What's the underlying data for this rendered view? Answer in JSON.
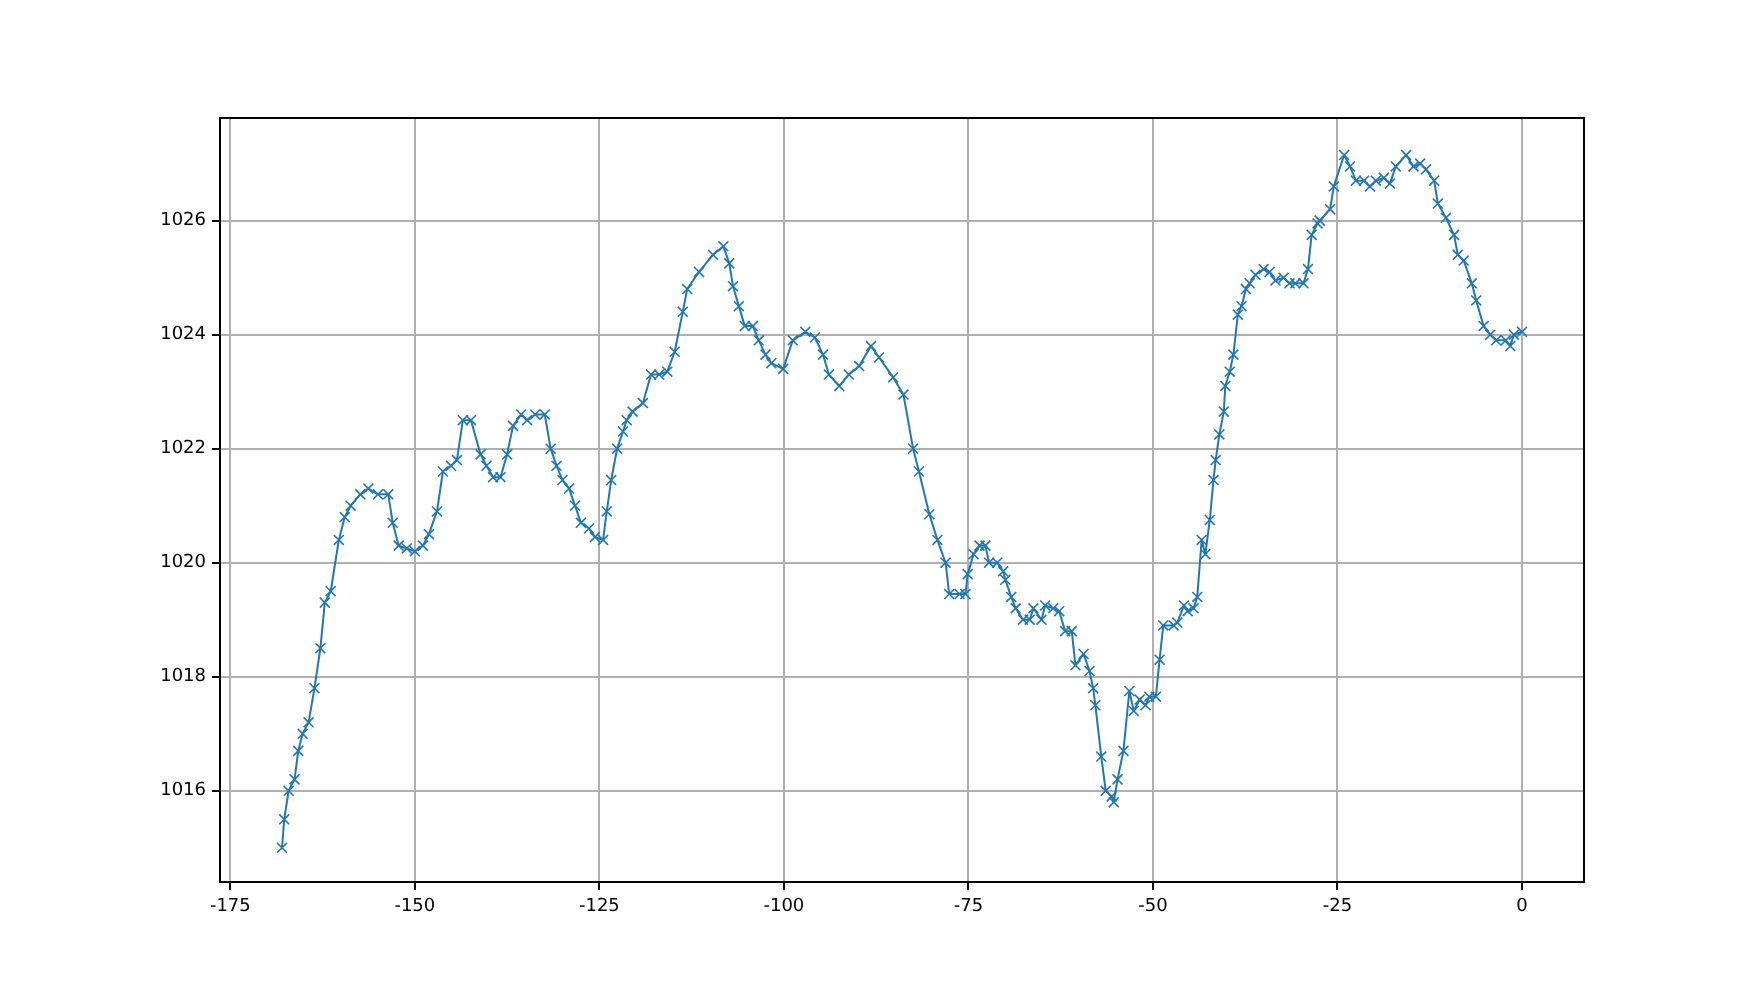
{
  "chart_data": {
    "type": "line",
    "marker": "cross",
    "line_style": "solid",
    "grid": true,
    "xlim": [
      -176.4,
      8.4
    ],
    "xticks": [
      -175,
      -150,
      -125,
      -100,
      -75,
      -50,
      -25,
      0
    ],
    "ylim": [
      1014.4,
      1027.8
    ],
    "yticks": [
      1016,
      1018,
      1020,
      1022,
      1024,
      1026
    ],
    "x": [
      -168,
      -167.7,
      -167.1,
      -166.3,
      -165.8,
      -165.2,
      -164.4,
      -163.6,
      -162.8,
      -162.2,
      -161.4,
      -160.3,
      -159.5,
      -158.7,
      -157.4,
      -156.3,
      -155,
      -153.6,
      -153,
      -152.2,
      -151.1,
      -150,
      -148.9,
      -148.1,
      -147,
      -146.2,
      -145.1,
      -144.3,
      -143.5,
      -142.4,
      -141.1,
      -140.3,
      -139.4,
      -138.4,
      -137.5,
      -136.7,
      -135.6,
      -134.8,
      -133.7,
      -132.4,
      -131.6,
      -130.8,
      -130,
      -129.1,
      -128.3,
      -127.5,
      -126.4,
      -125.6,
      -124.5,
      -124,
      -123.4,
      -122.6,
      -121.8,
      -121.3,
      -120.5,
      -119.1,
      -118,
      -116.9,
      -115.8,
      -114.8,
      -113.7,
      -113.1,
      -111.5,
      -109.6,
      -108.2,
      -107.4,
      -106.9,
      -106.1,
      -105.3,
      -104.2,
      -103.4,
      -102.5,
      -101.7,
      -100.1,
      -98.8,
      -97.1,
      -95.8,
      -94.7,
      -93.9,
      -92.5,
      -91.2,
      -89.8,
      -88.2,
      -87.1,
      -85.2,
      -83.8,
      -82.5,
      -81.7,
      -80.3,
      -79.2,
      -78.1,
      -77.6,
      -76.2,
      -75.4,
      -75.1,
      -74.3,
      -73.5,
      -72.7,
      -72.2,
      -71.1,
      -70.3,
      -70,
      -69.2,
      -68.6,
      -67.6,
      -66.7,
      -66.2,
      -65.1,
      -64.6,
      -63.5,
      -62.7,
      -61.9,
      -61,
      -60.5,
      -59.4,
      -58.6,
      -58.1,
      -57.8,
      -57,
      -56.4,
      -55.6,
      -55.3,
      -54.8,
      -54,
      -53.2,
      -52.6,
      -51.8,
      -51,
      -50.5,
      -49.6,
      -49.1,
      -48.6,
      -47.2,
      -46.7,
      -45.8,
      -45.3,
      -44.5,
      -44,
      -43.4,
      -42.9,
      -42.3,
      -41.8,
      -41.5,
      -41,
      -40.4,
      -40.2,
      -39.6,
      -39.1,
      -38.5,
      -38,
      -37.4,
      -36.9,
      -36.1,
      -35,
      -34.2,
      -33.4,
      -32.3,
      -31.5,
      -30.7,
      -29.6,
      -29,
      -28.5,
      -27.7,
      -27.4,
      -26,
      -25.5,
      -24.1,
      -23.3,
      -22.5,
      -21.4,
      -20.6,
      -19.8,
      -18.7,
      -17.9,
      -17.1,
      -15.7,
      -14.7,
      -13.8,
      -13,
      -11.9,
      -11.4,
      -10.3,
      -9.2,
      -8.7,
      -7.9,
      -6.8,
      -6.2,
      -5.2,
      -4.3,
      -3.5,
      -2.2,
      -1.6,
      -1.1,
      0
    ],
    "series": [
      {
        "color": "#1f77b4",
        "values": [
          1015.0,
          1015.5,
          1016.0,
          1016.2,
          1016.7,
          1017.0,
          1017.2,
          1017.8,
          1018.5,
          1019.3,
          1019.5,
          1020.4,
          1020.8,
          1021.0,
          1021.2,
          1021.3,
          1021.2,
          1021.2,
          1020.7,
          1020.3,
          1020.25,
          1020.2,
          1020.3,
          1020.5,
          1020.9,
          1021.6,
          1021.7,
          1021.8,
          1022.5,
          1022.5,
          1021.9,
          1021.7,
          1021.5,
          1021.5,
          1021.9,
          1022.4,
          1022.6,
          1022.5,
          1022.6,
          1022.6,
          1022.0,
          1021.7,
          1021.45,
          1021.3,
          1021.0,
          1020.7,
          1020.6,
          1020.45,
          1020.4,
          1020.9,
          1021.45,
          1022.0,
          1022.3,
          1022.5,
          1022.65,
          1022.8,
          1023.3,
          1023.3,
          1023.35,
          1023.7,
          1024.4,
          1024.8,
          1025.1,
          1025.4,
          1025.55,
          1025.25,
          1024.85,
          1024.5,
          1024.15,
          1024.15,
          1023.9,
          1023.65,
          1023.5,
          1023.4,
          1023.9,
          1024.05,
          1023.95,
          1023.65,
          1023.3,
          1023.1,
          1023.3,
          1023.45,
          1023.8,
          1023.6,
          1023.25,
          1022.95,
          1022.0,
          1021.6,
          1020.85,
          1020.4,
          1020.0,
          1019.45,
          1019.45,
          1019.45,
          1019.8,
          1020.15,
          1020.3,
          1020.3,
          1020.0,
          1020.0,
          1019.85,
          1019.7,
          1019.4,
          1019.2,
          1019.0,
          1019.0,
          1019.2,
          1019.0,
          1019.25,
          1019.2,
          1019.15,
          1018.8,
          1018.8,
          1018.2,
          1018.4,
          1018.1,
          1017.8,
          1017.5,
          1016.6,
          1016.0,
          1015.9,
          1015.8,
          1016.2,
          1016.7,
          1017.75,
          1017.4,
          1017.6,
          1017.5,
          1017.65,
          1017.65,
          1018.3,
          1018.9,
          1018.9,
          1018.95,
          1019.25,
          1019.15,
          1019.2,
          1019.4,
          1020.4,
          1020.15,
          1020.75,
          1021.45,
          1021.8,
          1022.25,
          1022.65,
          1023.1,
          1023.35,
          1023.65,
          1024.35,
          1024.5,
          1024.8,
          1024.9,
          1025.05,
          1025.15,
          1025.1,
          1024.95,
          1025.0,
          1024.9,
          1024.9,
          1024.9,
          1025.15,
          1025.75,
          1025.95,
          1026.0,
          1026.2,
          1026.6,
          1027.15,
          1026.95,
          1026.7,
          1026.7,
          1026.6,
          1026.7,
          1026.75,
          1026.65,
          1026.95,
          1027.15,
          1026.95,
          1027.0,
          1026.9,
          1026.7,
          1026.3,
          1026.05,
          1025.75,
          1025.4,
          1025.3,
          1024.9,
          1024.6,
          1024.15,
          1024.0,
          1023.9,
          1023.9,
          1023.8,
          1024.0,
          1024.05
        ]
      }
    ]
  }
}
